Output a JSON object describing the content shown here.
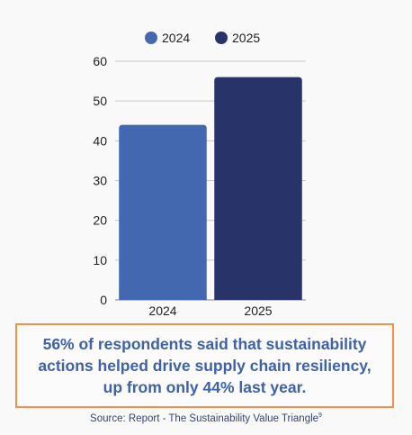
{
  "chart_data": {
    "type": "bar",
    "categories": [
      "2024",
      "2025"
    ],
    "series": [
      {
        "name": "2024",
        "values": [
          44,
          null
        ],
        "color": "#4468b0"
      },
      {
        "name": "2025",
        "values": [
          null,
          56
        ],
        "color": "#283369"
      }
    ],
    "title": "",
    "xlabel": "",
    "ylabel": "",
    "ylim": [
      0,
      60
    ],
    "yticks": [
      0,
      10,
      20,
      30,
      40,
      50,
      60
    ],
    "grid": true,
    "legend": "top-center"
  },
  "callout": {
    "text": "56% of respondents said that sustainability actions helped drive supply chain resiliency, up from only 44% last year.",
    "border_color": "#f0904a",
    "text_color": "#3f61a8"
  },
  "source": {
    "text": "Source: Report - The Sustainability Value Triangle",
    "footnote": "9"
  }
}
